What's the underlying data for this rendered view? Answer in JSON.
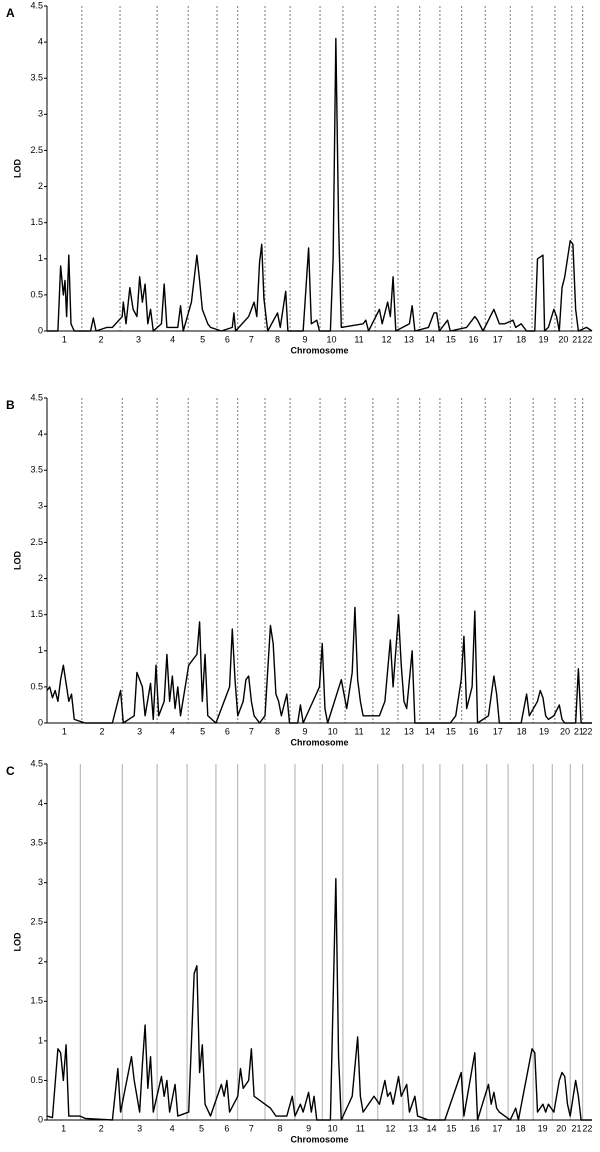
{
  "chart_data": [
    {
      "type": "line",
      "panel": "A",
      "xlabel": "Chromosome",
      "ylabel": "LOD",
      "color": "#000000",
      "boundary_style": "dashed",
      "categories": [
        "1",
        "2",
        "3",
        "4",
        "5",
        "6",
        "7",
        "8",
        "9",
        "10",
        "11",
        "12",
        "13",
        "14",
        "15",
        "16",
        "17",
        "18",
        "19",
        "20",
        "21",
        "22"
      ],
      "boundaries": [
        6.4,
        13.4,
        20.2,
        25.9,
        31.2,
        35.0,
        40.0,
        44.6,
        50.1,
        54.3,
        60.2,
        64.4,
        68.4,
        72.1,
        76.1,
        80.4,
        85.0,
        89.0,
        93.2,
        96.3,
        98.3
      ],
      "xlim": [
        0,
        100
      ],
      "ylim": [
        0,
        4.5
      ],
      "yticks": [
        0,
        0.5,
        1,
        1.5,
        2,
        2.5,
        3,
        3.5,
        4,
        4.5
      ],
      "x": [
        0,
        2,
        2.5,
        3,
        3.3,
        3.6,
        4,
        4.4,
        5,
        8,
        8.5,
        9,
        11,
        12,
        13.8,
        14,
        14.5,
        15.2,
        15.8,
        16.5,
        17,
        17.5,
        18,
        18.5,
        19,
        19.5,
        21,
        21.5,
        22,
        24,
        24.5,
        25,
        26.5,
        27.5,
        28,
        28.5,
        29,
        29.5,
        30,
        32,
        34,
        34.3,
        34.6,
        37,
        38,
        38.5,
        39,
        39.4,
        39.8,
        40.5,
        42.3,
        42.8,
        43.8,
        44.2,
        47,
        48,
        48.5,
        49.5,
        50,
        52,
        52.5,
        53,
        53.5,
        54,
        58,
        58.5,
        59,
        61,
        61.5,
        62.5,
        63,
        63.5,
        64,
        66.5,
        67,
        67.5,
        70,
        71,
        71.5,
        72,
        73.5,
        74,
        77,
        78.5,
        79,
        80,
        82,
        83,
        84,
        85.5,
        86,
        87,
        88,
        89.5,
        90,
        91,
        91.3,
        92,
        93,
        93.5,
        94,
        94.5,
        95,
        95.5,
        96,
        96.5,
        97,
        97.5,
        99,
        100
      ],
      "values": [
        0,
        0,
        0.9,
        0.5,
        0.7,
        0.2,
        1.05,
        0.1,
        0,
        0,
        0.18,
        0,
        0.05,
        0.05,
        0.2,
        0.4,
        0.1,
        0.6,
        0.3,
        0.2,
        0.75,
        0.4,
        0.65,
        0.1,
        0.3,
        0,
        0.1,
        0.65,
        0.05,
        0.05,
        0.35,
        0,
        0.4,
        1.05,
        0.7,
        0.3,
        0.2,
        0.1,
        0.05,
        0,
        0.05,
        0.25,
        0,
        0.2,
        0.4,
        0.2,
        0.95,
        1.2,
        0.45,
        0,
        0.25,
        0.05,
        0.55,
        0,
        0,
        1.15,
        0.1,
        0.15,
        0,
        0,
        1.0,
        4.05,
        1.5,
        0.05,
        0.1,
        0.15,
        0,
        0.3,
        0.1,
        0.4,
        0.2,
        0.75,
        0,
        0.1,
        0.35,
        0,
        0.05,
        0.25,
        0.25,
        0,
        0.15,
        0,
        0.05,
        0.2,
        0.15,
        0,
        0.3,
        0.1,
        0.1,
        0.15,
        0.05,
        0.1,
        0,
        0,
        1.0,
        1.05,
        0,
        0.05,
        0.3,
        0.2,
        0,
        0.6,
        0.75,
        1.0,
        1.25,
        1.2,
        0.3,
        0,
        0.05,
        0
      ]
    },
    {
      "type": "line",
      "panel": "B",
      "xlabel": "Chromosome",
      "ylabel": "LOD",
      "color": "#000000",
      "boundary_style": "dashed",
      "categories": [
        "1",
        "2",
        "3",
        "4",
        "5",
        "6",
        "7",
        "8",
        "9",
        "10",
        "11",
        "12",
        "13",
        "14",
        "15",
        "16",
        "17",
        "18",
        "19",
        "20",
        "21",
        "22"
      ],
      "boundaries": [
        6.4,
        13.8,
        20.2,
        25.9,
        31.2,
        35.0,
        40.0,
        44.6,
        50.1,
        54.7,
        59.8,
        64.4,
        68.4,
        72.1,
        76.1,
        80.4,
        85.0,
        89.2,
        93.2,
        96.9,
        98.3
      ],
      "xlim": [
        0,
        100
      ],
      "ylim": [
        0,
        4.5
      ],
      "yticks": [
        0,
        0.5,
        1,
        1.5,
        2,
        2.5,
        3,
        3.5,
        4,
        4.5
      ],
      "x": [
        0,
        0.5,
        1,
        1.5,
        2,
        2.5,
        3,
        3.5,
        4,
        4.5,
        5,
        7,
        12,
        13.5,
        14,
        16,
        16.5,
        17.5,
        18,
        19,
        19.5,
        20,
        20.5,
        21.5,
        22,
        22.5,
        23,
        23.5,
        24,
        24.5,
        26,
        27.5,
        28,
        28.5,
        29,
        29.5,
        31,
        33.5,
        34,
        34.5,
        35,
        36,
        36.5,
        37,
        37.5,
        38,
        39,
        40,
        41,
        41.5,
        42,
        42.5,
        43,
        44,
        44.5,
        46,
        46.5,
        47,
        50,
        50.5,
        51,
        51.5,
        54,
        55,
        56,
        56.5,
        57,
        57.5,
        58,
        60,
        61,
        62,
        63,
        63.5,
        64.5,
        65,
        65.5,
        66,
        67,
        67.5,
        74,
        75,
        76,
        76.5,
        77,
        78,
        78.5,
        79,
        81,
        82,
        82.5,
        83,
        87,
        88,
        88.5,
        90,
        90.5,
        91,
        91.5,
        92,
        93,
        94,
        94.5,
        95,
        97,
        97.5,
        98,
        100
      ],
      "values": [
        0.45,
        0.5,
        0.35,
        0.45,
        0.3,
        0.6,
        0.8,
        0.55,
        0.3,
        0.4,
        0.05,
        0,
        0,
        0.45,
        0,
        0.1,
        0.7,
        0.5,
        0.1,
        0.55,
        0.05,
        0.8,
        0.1,
        0.3,
        0.95,
        0.3,
        0.65,
        0.2,
        0.5,
        0.1,
        0.8,
        0.95,
        1.4,
        0.3,
        0.95,
        0.1,
        0,
        0.5,
        1.3,
        0.6,
        0.1,
        0.3,
        0.6,
        0.65,
        0.3,
        0.1,
        0,
        0.1,
        1.35,
        1.1,
        0.4,
        0.3,
        0.1,
        0.4,
        0,
        0,
        0.25,
        0,
        0.5,
        1.1,
        0.2,
        0,
        0.6,
        0.2,
        0.7,
        1.6,
        0.6,
        0.3,
        0.1,
        0.1,
        0.1,
        0.3,
        1.15,
        0.5,
        1.5,
        0.8,
        0.3,
        0.2,
        1.0,
        0,
        0,
        0.1,
        0.6,
        1.2,
        0.2,
        0.5,
        1.55,
        0,
        0.1,
        0.65,
        0.4,
        0,
        0,
        0.4,
        0.1,
        0.3,
        0.45,
        0.35,
        0.1,
        0.05,
        0.1,
        0.25,
        0.05,
        0,
        0,
        0.75,
        0,
        0
      ]
    },
    {
      "type": "line",
      "panel": "C",
      "xlabel": "Chromosome",
      "ylabel": "LOD",
      "color": "#000000",
      "boundary_style": "solid",
      "categories": [
        "1",
        "2",
        "3",
        "4",
        "5",
        "6",
        "7",
        "8",
        "9",
        "10",
        "11",
        "12",
        "13",
        "14",
        "15",
        "16",
        "17",
        "18",
        "19",
        "20",
        "21",
        "22"
      ],
      "boundaries": [
        6.1,
        13.8,
        20.2,
        25.7,
        31.0,
        35.0,
        40.0,
        45.5,
        50.5,
        54.3,
        60.7,
        65.3,
        69.0,
        72.1,
        76.3,
        80.7,
        84.6,
        89.2,
        92.7,
        96.0,
        98.3
      ],
      "xlim": [
        0,
        100
      ],
      "ylim": [
        0,
        4.5
      ],
      "yticks": [
        0,
        0.5,
        1,
        1.5,
        2,
        2.5,
        3,
        3.5,
        4,
        4.5
      ],
      "x": [
        0,
        1,
        2,
        2.5,
        3,
        3.5,
        4,
        6,
        7,
        12,
        13,
        13.5,
        15.5,
        16,
        16.5,
        17,
        17.5,
        18,
        18.5,
        19,
        19.5,
        21,
        21.5,
        22,
        22.5,
        23.5,
        24,
        26,
        27,
        27.5,
        28,
        28.5,
        29,
        30,
        32,
        32.5,
        33,
        33.5,
        35,
        35.5,
        36,
        37,
        37.5,
        38,
        39,
        40,
        41,
        42,
        44,
        45,
        45.5,
        46.5,
        47,
        48,
        48.5,
        49,
        49.5,
        52,
        53,
        53.5,
        54,
        56,
        57,
        57.5,
        58,
        60,
        61,
        62,
        62.5,
        63,
        63.5,
        64.5,
        65,
        66,
        66.5,
        67.5,
        68,
        70,
        73,
        76,
        76.5,
        78.5,
        79,
        81,
        81.5,
        82,
        82.5,
        83,
        85,
        86,
        86.5,
        89,
        89.5,
        90,
        91,
        91.5,
        92,
        93,
        94,
        94.5,
        95,
        95.5,
        96,
        97,
        97.5,
        98,
        100
      ],
      "values": [
        0.05,
        0.03,
        0.9,
        0.85,
        0.5,
        0.95,
        0.05,
        0.05,
        0.02,
        0,
        0.65,
        0.1,
        0.8,
        0.5,
        0.3,
        0.1,
        0.7,
        1.2,
        0.4,
        0.8,
        0.1,
        0.55,
        0.3,
        0.5,
        0.1,
        0.45,
        0.05,
        0.1,
        1.85,
        1.95,
        0.6,
        0.95,
        0.2,
        0.05,
        0.45,
        0.3,
        0.5,
        0.1,
        0.3,
        0.65,
        0.4,
        0.5,
        0.9,
        0.3,
        0.25,
        0.2,
        0.15,
        0.05,
        0.05,
        0.3,
        0.05,
        0.2,
        0.1,
        0.35,
        0.1,
        0.3,
        0,
        0,
        3.05,
        0.8,
        0,
        0.3,
        1.05,
        0.3,
        0.1,
        0.3,
        0.2,
        0.5,
        0.3,
        0.35,
        0.2,
        0.55,
        0.3,
        0.45,
        0.1,
        0.3,
        0.05,
        0,
        0,
        0.6,
        0.05,
        0.85,
        0,
        0.45,
        0.2,
        0.35,
        0.15,
        0.1,
        0,
        0.15,
        0,
        0.9,
        0.85,
        0.1,
        0.2,
        0.1,
        0.2,
        0.1,
        0.5,
        0.6,
        0.55,
        0.2,
        0.05,
        0.5,
        0.3,
        0,
        0
      ]
    }
  ]
}
